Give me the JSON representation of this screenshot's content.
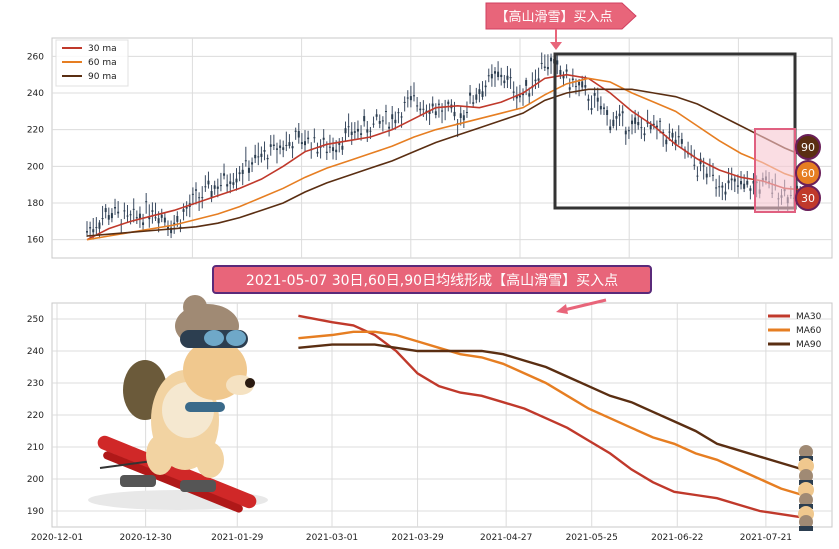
{
  "chart_data": [
    {
      "type": "candlestick-line",
      "ylim": [
        150,
        270
      ],
      "yticks": [
        160,
        180,
        200,
        220,
        240,
        260
      ],
      "grid": true,
      "legend_position": "top-left",
      "legend": [
        "30 ma",
        "60 ma",
        "90 ma"
      ],
      "x_range": [
        "2020-12-17",
        "2021-08-10"
      ],
      "annotation": "【高山滑雪】买入点",
      "annotation_x": "2021-05-07",
      "badges": [
        "90",
        "60",
        "30"
      ],
      "price": {
        "dates": [
          "2020-12-17",
          "2020-12-24",
          "2020-12-31",
          "2021-01-07",
          "2021-01-14",
          "2021-01-21",
          "2021-01-28",
          "2021-02-04",
          "2021-02-11",
          "2021-02-18",
          "2021-02-25",
          "2021-03-04",
          "2021-03-11",
          "2021-03-18",
          "2021-03-25",
          "2021-04-01",
          "2021-04-08",
          "2021-04-15",
          "2021-04-22",
          "2021-04-29",
          "2021-05-06",
          "2021-05-13",
          "2021-05-20",
          "2021-05-27",
          "2021-06-03",
          "2021-06-10",
          "2021-06-17",
          "2021-06-24",
          "2021-07-01",
          "2021-07-08",
          "2021-07-15",
          "2021-07-22",
          "2021-07-29",
          "2021-08-05"
        ],
        "values": [
          165,
          175,
          170,
          178,
          168,
          182,
          190,
          198,
          205,
          212,
          215,
          210,
          218,
          222,
          226,
          236,
          232,
          226,
          242,
          250,
          238,
          258,
          248,
          238,
          226,
          222,
          220,
          214,
          200,
          192,
          188,
          190,
          186,
          182
        ]
      },
      "series": [
        {
          "name": "30 ma",
          "color": "#c0392b",
          "values": [
            160,
            166,
            170,
            173,
            176,
            180,
            184,
            188,
            193,
            200,
            208,
            212,
            214,
            216,
            220,
            226,
            232,
            233,
            232,
            235,
            240,
            248,
            250,
            248,
            240,
            230,
            222,
            212,
            204,
            198,
            194,
            192,
            188,
            187
          ]
        },
        {
          "name": "60 ma",
          "color": "#e67e22",
          "values": [
            160,
            162,
            164,
            166,
            168,
            171,
            174,
            178,
            183,
            188,
            194,
            199,
            203,
            207,
            211,
            216,
            220,
            223,
            226,
            229,
            232,
            239,
            245,
            248,
            246,
            240,
            235,
            230,
            222,
            214,
            207,
            202,
            196,
            192
          ]
        },
        {
          "name": "90 ma",
          "color": "#5a2e12",
          "values": [
            162,
            163,
            164,
            165,
            166,
            167,
            169,
            172,
            176,
            180,
            186,
            191,
            195,
            199,
            203,
            208,
            213,
            217,
            221,
            225,
            229,
            236,
            240,
            242,
            242,
            242,
            240,
            238,
            234,
            228,
            222,
            216,
            210,
            205
          ]
        }
      ]
    },
    {
      "type": "line",
      "ylim": [
        185,
        255
      ],
      "yticks": [
        190,
        200,
        210,
        220,
        230,
        240,
        250
      ],
      "xtick_labels": [
        "2020-12-01",
        "2020-12-30",
        "2021-01-29",
        "2021-03-01",
        "2021-03-29",
        "2021-04-27",
        "2021-05-25",
        "2021-06-22",
        "2021-07-21"
      ],
      "grid": true,
      "legend_position": "top-right",
      "legend": [
        "MA30",
        "MA60",
        "MA90"
      ],
      "title": "2021-05-07 30日,60日,90日均线形成【高山滑雪】买入点",
      "x": [
        "2021-02-18",
        "2021-03-01",
        "2021-03-08",
        "2021-03-15",
        "2021-03-22",
        "2021-03-29",
        "2021-04-05",
        "2021-04-12",
        "2021-04-19",
        "2021-04-26",
        "2021-05-03",
        "2021-05-10",
        "2021-05-17",
        "2021-05-24",
        "2021-05-31",
        "2021-06-07",
        "2021-06-14",
        "2021-06-21",
        "2021-06-28",
        "2021-07-05",
        "2021-07-12",
        "2021-07-19",
        "2021-07-26",
        "2021-08-02"
      ],
      "series": [
        {
          "name": "MA30",
          "color": "#c0392b",
          "values": [
            251,
            249,
            248,
            245,
            240,
            233,
            229,
            227,
            226,
            224,
            222,
            219,
            216,
            212,
            208,
            203,
            199,
            196,
            195,
            194,
            192,
            190,
            189,
            188
          ]
        },
        {
          "name": "MA60",
          "color": "#e67e22",
          "values": [
            244,
            245,
            246,
            246,
            245,
            243,
            241,
            239,
            238,
            236,
            233,
            230,
            226,
            222,
            219,
            216,
            213,
            211,
            208,
            206,
            203,
            200,
            197,
            195
          ]
        },
        {
          "name": "MA90",
          "color": "#5a2e12",
          "values": [
            241,
            242,
            242,
            242,
            241,
            240,
            240,
            240,
            240,
            239,
            237,
            235,
            232,
            229,
            226,
            224,
            221,
            218,
            215,
            211,
            209,
            207,
            205,
            203
          ]
        }
      ]
    }
  ]
}
